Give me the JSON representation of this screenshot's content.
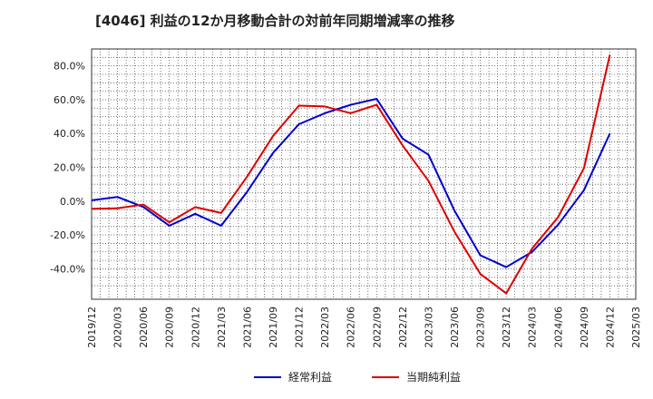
{
  "chart_data": {
    "type": "line",
    "title": "[4046]  利益の12か月移動合計の対前年同期増減率の推移",
    "xlabel": "",
    "ylabel": "",
    "ylim": [
      -58,
      90
    ],
    "y_ticks": [
      -40,
      -20,
      0,
      20,
      40,
      60,
      80
    ],
    "y_tick_labels": [
      "-40.0%",
      "-20.0%",
      "0.0%",
      "20.0%",
      "40.0%",
      "60.0%",
      "80.0%"
    ],
    "categories": [
      "2019/12",
      "2020/03",
      "2020/06",
      "2020/09",
      "2020/12",
      "2021/03",
      "2021/06",
      "2021/09",
      "2021/12",
      "2022/03",
      "2022/06",
      "2022/09",
      "2022/12",
      "2023/03",
      "2023/06",
      "2023/09",
      "2023/12",
      "2024/03",
      "2024/06",
      "2024/09",
      "2024/12",
      "2025/03"
    ],
    "grid": true,
    "legend_position": "bottom",
    "series": [
      {
        "name": "経常利益",
        "color": "#0000cc",
        "values": [
          0.5,
          2.5,
          -3.5,
          -14.5,
          -7.5,
          -14.5,
          5.5,
          28.5,
          45.5,
          52.0,
          57.0,
          60.5,
          37.0,
          27.5,
          -5.5,
          -32.0,
          -39.0,
          -30.0,
          -14.0,
          6.5,
          40.0,
          null
        ]
      },
      {
        "name": "当期純利益",
        "color": "#dd0000",
        "values": [
          -4.5,
          -4.2,
          -2.0,
          -12.5,
          -3.5,
          -7.0,
          14.5,
          38.5,
          56.5,
          56.0,
          52.0,
          57.0,
          33.0,
          12.0,
          -18.0,
          -43.0,
          -54.5,
          -28.0,
          -9.5,
          19.5,
          86.5,
          null
        ]
      }
    ]
  }
}
